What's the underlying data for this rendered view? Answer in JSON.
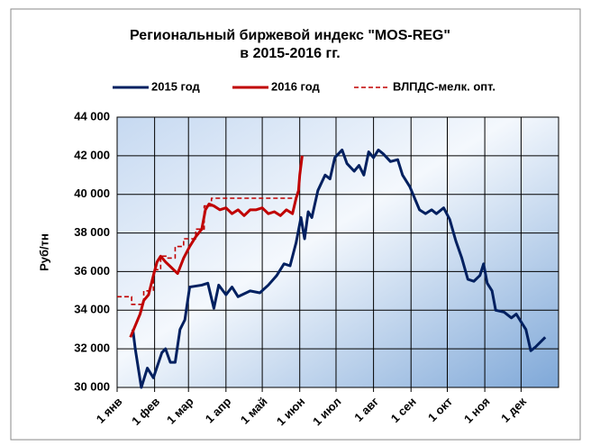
{
  "chart_data": {
    "type": "line",
    "title": "Региональный биржевой индекс \"MOS-REG\"",
    "subtitle": "в 2015-2016 гг.",
    "ylabel": "Руб/тн",
    "xlim": [
      0,
      365
    ],
    "xticks": [
      {
        "value": 0,
        "label": "1 янв"
      },
      {
        "value": 31,
        "label": "1 фев"
      },
      {
        "value": 59,
        "label": "1 мар"
      },
      {
        "value": 90,
        "label": "1 апр"
      },
      {
        "value": 120,
        "label": "1 май"
      },
      {
        "value": 151,
        "label": "1 июн"
      },
      {
        "value": 181,
        "label": "1 июл"
      },
      {
        "value": 212,
        "label": "1 авг"
      },
      {
        "value": 243,
        "label": "1 сен"
      },
      {
        "value": 273,
        "label": "1 окт"
      },
      {
        "value": 304,
        "label": "1 ноя"
      },
      {
        "value": 334,
        "label": "1 дек"
      }
    ],
    "ylim": [
      30000,
      44000
    ],
    "yticks": [
      {
        "value": 30000,
        "label": "30 000"
      },
      {
        "value": 32000,
        "label": "32 000"
      },
      {
        "value": 34000,
        "label": "34 000"
      },
      {
        "value": 36000,
        "label": "36 000"
      },
      {
        "value": 38000,
        "label": "38 000"
      },
      {
        "value": 40000,
        "label": "40 000"
      },
      {
        "value": 42000,
        "label": "42 000"
      },
      {
        "value": 44000,
        "label": "44 000"
      }
    ],
    "grid": true,
    "series": [
      {
        "name": "2015 год",
        "color": "#002060",
        "dashed": false,
        "x": [
          13,
          15,
          20,
          25,
          30,
          37,
          40,
          44,
          48,
          52,
          56,
          60,
          70,
          75,
          80,
          84,
          90,
          95,
          100,
          110,
          118,
          125,
          132,
          138,
          143,
          148,
          152,
          155,
          158,
          161,
          166,
          172,
          176,
          180,
          186,
          190,
          196,
          200,
          204,
          208,
          212,
          216,
          220,
          226,
          232,
          236,
          242,
          246,
          250,
          255,
          260,
          264,
          270,
          275,
          280,
          285,
          290,
          295,
          300,
          303,
          306,
          310,
          313,
          320,
          326,
          330,
          334,
          338,
          342,
          346,
          354
        ],
        "values": [
          33000,
          32000,
          30000,
          31000,
          30500,
          31800,
          32000,
          31300,
          31300,
          33000,
          33500,
          35200,
          35300,
          35400,
          34100,
          35300,
          34800,
          35200,
          34700,
          35000,
          34900,
          35300,
          35800,
          36400,
          36300,
          37500,
          38800,
          37700,
          39100,
          38800,
          40200,
          41000,
          40800,
          41900,
          42300,
          41600,
          41200,
          41500,
          41000,
          42200,
          41900,
          42300,
          42100,
          41700,
          41800,
          41000,
          40400,
          39800,
          39200,
          39000,
          39200,
          39000,
          39300,
          38700,
          37600,
          36700,
          35600,
          35500,
          35800,
          36400,
          35400,
          35000,
          34000,
          33900,
          33600,
          33800,
          33400,
          33000,
          31900,
          32100,
          32600
        ]
      },
      {
        "name": "2016 год",
        "color": "#c00000",
        "dashed": false,
        "x": [
          11,
          19,
          22,
          26,
          30,
          33,
          36,
          40,
          45,
          50,
          55,
          60,
          65,
          70,
          73,
          76,
          80,
          85,
          90,
          95,
          100,
          105,
          110,
          115,
          120,
          125,
          130,
          135,
          140,
          145,
          148,
          150,
          151,
          153
        ],
        "values": [
          32600,
          33800,
          34500,
          34800,
          35800,
          36500,
          36800,
          36500,
          36200,
          35900,
          36700,
          37300,
          37800,
          38200,
          39200,
          39500,
          39400,
          39200,
          39300,
          39000,
          39200,
          38900,
          39200,
          39200,
          39300,
          39000,
          39100,
          38900,
          39200,
          39000,
          39800,
          40200,
          41000,
          42000
        ]
      },
      {
        "name": "ВЛПДС-мелк.  опт.",
        "color": "#c00000",
        "dashed": true,
        "x": [
          0,
          12,
          12,
          18,
          18,
          22,
          22,
          30,
          30,
          36,
          36,
          42,
          42,
          48,
          48,
          55,
          55,
          65,
          65,
          72,
          72,
          78,
          78,
          148
        ],
        "values": [
          34700,
          34700,
          34300,
          34300,
          34300,
          34300,
          35000,
          35000,
          36100,
          36100,
          36800,
          36800,
          36700,
          36700,
          37300,
          37300,
          37700,
          37700,
          38200,
          38200,
          39400,
          39400,
          39800,
          39800
        ]
      }
    ]
  }
}
